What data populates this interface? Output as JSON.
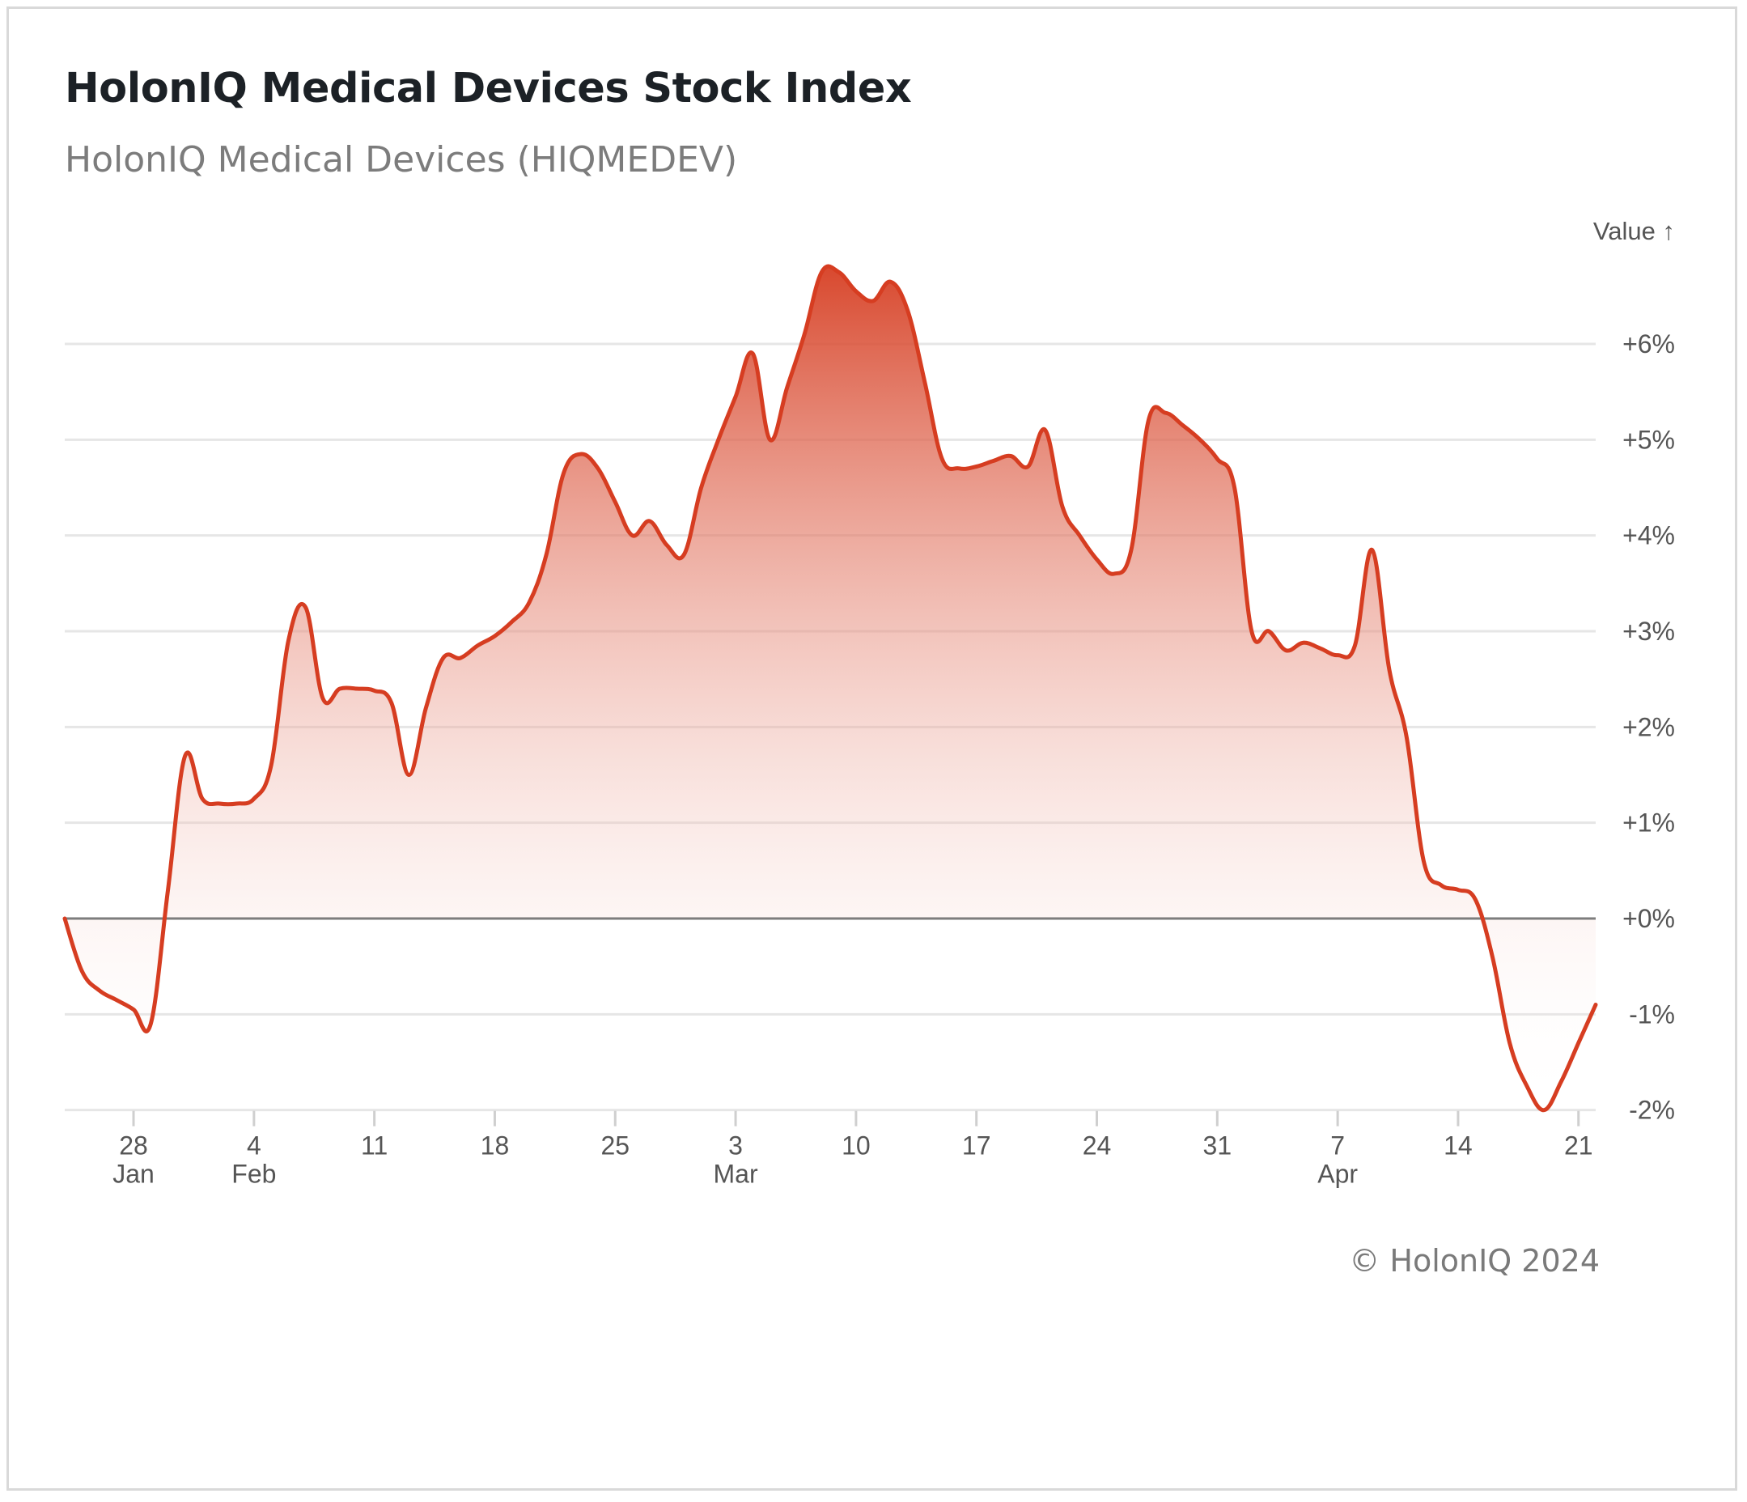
{
  "title": "HolonIQ Medical Devices Stock Index",
  "subtitle": "HolonIQ Medical Devices (HIQMEDEV)",
  "copyright": "© HolonIQ 2024",
  "colors": {
    "line": "#d63d21",
    "area_top": "#d63d21",
    "area_bottom": "#ffffff",
    "zero_line": "#7d7d7d",
    "grid": "#e6e6e6"
  },
  "chart_data": {
    "type": "area",
    "y_axis_title": "Value ↑",
    "y_unit": "%",
    "ylim": [
      -2,
      6.8
    ],
    "yticks": [
      -2,
      -1,
      0,
      1,
      2,
      3,
      4,
      5,
      6
    ],
    "ytick_labels": [
      "-2%",
      "-1%",
      "+0%",
      "+1%",
      "+2%",
      "+3%",
      "+4%",
      "+5%",
      "+6%"
    ],
    "grid": true,
    "xlim": [
      "2024-01-24",
      "2024-04-22"
    ],
    "xticks": [
      {
        "date": "2024-01-28",
        "day": "28",
        "month": "Jan"
      },
      {
        "date": "2024-02-04",
        "day": "4",
        "month": "Feb"
      },
      {
        "date": "2024-02-11",
        "day": "11",
        "month": ""
      },
      {
        "date": "2024-02-18",
        "day": "18",
        "month": ""
      },
      {
        "date": "2024-02-25",
        "day": "25",
        "month": ""
      },
      {
        "date": "2024-03-03",
        "day": "3",
        "month": "Mar"
      },
      {
        "date": "2024-03-10",
        "day": "10",
        "month": ""
      },
      {
        "date": "2024-03-17",
        "day": "17",
        "month": ""
      },
      {
        "date": "2024-03-24",
        "day": "24",
        "month": ""
      },
      {
        "date": "2024-03-31",
        "day": "31",
        "month": ""
      },
      {
        "date": "2024-04-07",
        "day": "7",
        "month": "Apr"
      },
      {
        "date": "2024-04-14",
        "day": "14",
        "month": ""
      },
      {
        "date": "2024-04-21",
        "day": "21",
        "month": ""
      }
    ],
    "series": [
      {
        "points": [
          [
            "2024-01-24",
            0.0
          ],
          [
            "2024-01-25",
            -0.55
          ],
          [
            "2024-01-26",
            -0.75
          ],
          [
            "2024-01-27",
            -0.85
          ],
          [
            "2024-01-28",
            -0.95
          ],
          [
            "2024-01-29",
            -1.1
          ],
          [
            "2024-01-30",
            0.3
          ],
          [
            "2024-01-31",
            1.7
          ],
          [
            "2024-02-01",
            1.25
          ],
          [
            "2024-02-02",
            1.2
          ],
          [
            "2024-02-03",
            1.2
          ],
          [
            "2024-02-04",
            1.25
          ],
          [
            "2024-02-05",
            1.6
          ],
          [
            "2024-02-06",
            2.9
          ],
          [
            "2024-02-07",
            3.25
          ],
          [
            "2024-02-08",
            2.3
          ],
          [
            "2024-02-09",
            2.4
          ],
          [
            "2024-02-10",
            2.4
          ],
          [
            "2024-02-11",
            2.38
          ],
          [
            "2024-02-12",
            2.25
          ],
          [
            "2024-02-13",
            1.5
          ],
          [
            "2024-02-14",
            2.2
          ],
          [
            "2024-02-15",
            2.72
          ],
          [
            "2024-02-16",
            2.72
          ],
          [
            "2024-02-17",
            2.85
          ],
          [
            "2024-02-18",
            2.95
          ],
          [
            "2024-02-19",
            3.1
          ],
          [
            "2024-02-20",
            3.3
          ],
          [
            "2024-02-21",
            3.8
          ],
          [
            "2024-02-22",
            4.65
          ],
          [
            "2024-02-23",
            4.85
          ],
          [
            "2024-02-24",
            4.7
          ],
          [
            "2024-02-25",
            4.35
          ],
          [
            "2024-02-26",
            4.0
          ],
          [
            "2024-02-27",
            4.15
          ],
          [
            "2024-02-28",
            3.9
          ],
          [
            "2024-02-29",
            3.8
          ],
          [
            "2024-03-01",
            4.5
          ],
          [
            "2024-03-02",
            5.0
          ],
          [
            "2024-03-03",
            5.45
          ],
          [
            "2024-03-04",
            5.9
          ],
          [
            "2024-03-05",
            5.0
          ],
          [
            "2024-03-06",
            5.55
          ],
          [
            "2024-03-07",
            6.1
          ],
          [
            "2024-03-08",
            6.75
          ],
          [
            "2024-03-09",
            6.75
          ],
          [
            "2024-03-10",
            6.55
          ],
          [
            "2024-03-11",
            6.45
          ],
          [
            "2024-03-12",
            6.65
          ],
          [
            "2024-03-13",
            6.35
          ],
          [
            "2024-03-14",
            5.6
          ],
          [
            "2024-03-15",
            4.8
          ],
          [
            "2024-03-16",
            4.7
          ],
          [
            "2024-03-17",
            4.72
          ],
          [
            "2024-03-18",
            4.78
          ],
          [
            "2024-03-19",
            4.83
          ],
          [
            "2024-03-20",
            4.72
          ],
          [
            "2024-03-21",
            5.1
          ],
          [
            "2024-03-22",
            4.3
          ],
          [
            "2024-03-23",
            4.0
          ],
          [
            "2024-03-24",
            3.75
          ],
          [
            "2024-03-25",
            3.6
          ],
          [
            "2024-03-26",
            3.85
          ],
          [
            "2024-03-27",
            5.2
          ],
          [
            "2024-03-28",
            5.28
          ],
          [
            "2024-03-29",
            5.15
          ],
          [
            "2024-03-30",
            5.0
          ],
          [
            "2024-03-31",
            4.8
          ],
          [
            "2024-04-01",
            4.5
          ],
          [
            "2024-04-02",
            3.0
          ],
          [
            "2024-04-03",
            3.0
          ],
          [
            "2024-04-04",
            2.8
          ],
          [
            "2024-04-05",
            2.88
          ],
          [
            "2024-04-06",
            2.82
          ],
          [
            "2024-04-07",
            2.75
          ],
          [
            "2024-04-08",
            2.85
          ],
          [
            "2024-04-09",
            3.85
          ],
          [
            "2024-04-10",
            2.6
          ],
          [
            "2024-04-11",
            1.9
          ],
          [
            "2024-04-12",
            0.6
          ],
          [
            "2024-04-13",
            0.35
          ],
          [
            "2024-04-14",
            0.3
          ],
          [
            "2024-04-15",
            0.2
          ],
          [
            "2024-04-16",
            -0.4
          ],
          [
            "2024-04-17",
            -1.3
          ],
          [
            "2024-04-18",
            -1.75
          ],
          [
            "2024-04-19",
            -2.0
          ],
          [
            "2024-04-20",
            -1.7
          ],
          [
            "2024-04-21",
            -1.3
          ],
          [
            "2024-04-22",
            -0.9
          ]
        ]
      }
    ]
  }
}
